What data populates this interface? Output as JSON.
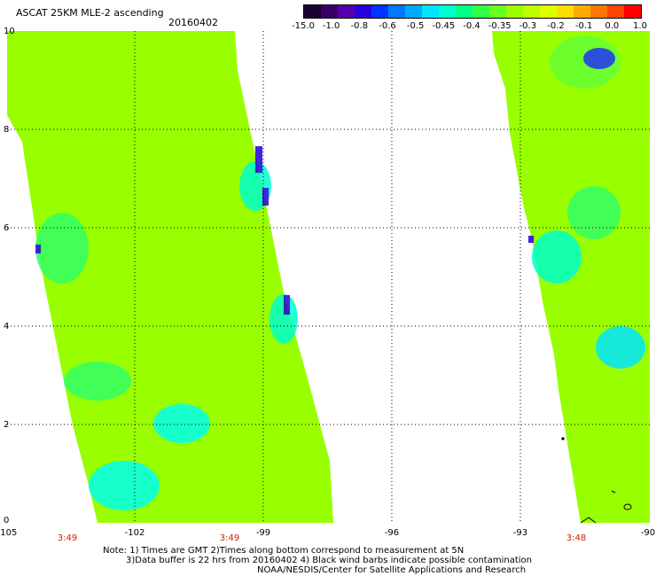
{
  "header": {
    "title": "ASCAT 25KM MLE-2 ascending",
    "date": "20160402"
  },
  "colorbar": {
    "labels": [
      "-15.0",
      "-1.0",
      "-0.8",
      "-0.6",
      "-0.5",
      "-0.45",
      "-0.4",
      "-0.35",
      "-0.3",
      "-0.2",
      "-0.1",
      "0.0",
      "1.0"
    ],
    "colors": [
      "#1a0033",
      "#3a0066",
      "#5500aa",
      "#2a00dd",
      "#0033ff",
      "#0077ff",
      "#00aaff",
      "#00e5ff",
      "#00ffcc",
      "#00ff88",
      "#33ff44",
      "#66ff22",
      "#99ff00",
      "#bbff00",
      "#ddff00",
      "#ffdd00",
      "#ffaa00",
      "#ff7700",
      "#ff4400",
      "#ff0000"
    ]
  },
  "map": {
    "x_ticks": [
      "-105",
      "-102",
      "-99",
      "-96",
      "-93",
      "-90"
    ],
    "y_ticks": [
      "0",
      "2",
      "4",
      "6",
      "8",
      "10"
    ],
    "times": [
      "3:49",
      "3:49",
      "3:48"
    ],
    "time_color": "#cc2200",
    "field_color": "#99ff00"
  },
  "footer": {
    "note1": "Note: 1) Times are GMT 2)Times along bottom correspond to measurement at 5N",
    "note2": "3)Data buffer is 22 hrs from 20160402 4) Black wind barbs indicate possible contamination",
    "credit": "NOAA/NESDIS/Center for Satellite Applications and Research"
  }
}
